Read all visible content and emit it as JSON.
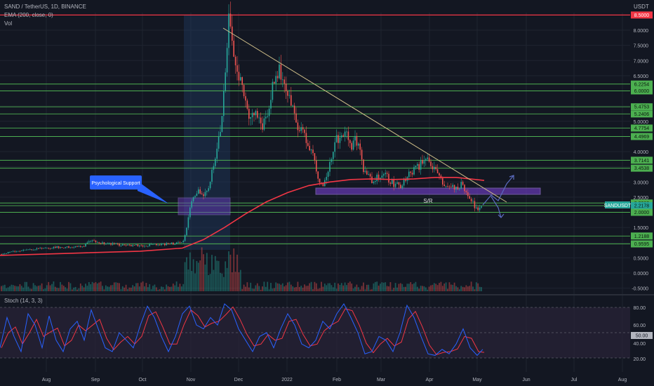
{
  "header": {
    "symbol_line": "SAND / TetherUS, 1D, BINANCE",
    "ema_line": "EMA (200, close, 0)",
    "vol_line": "Vol",
    "currency": "USDT",
    "stoch_line": "Stoch (14, 3, 3)"
  },
  "colors": {
    "background": "#131722",
    "up": "#26a69a",
    "down": "#ef5350",
    "ema": "#f23645",
    "level": "#4caf50",
    "resistance_top": "#f23645",
    "trendline": "#d1c08a",
    "sr_zone": "#673ab7",
    "stoch_k": "#2962ff",
    "stoch_d": "#f23645"
  },
  "chart_data": {
    "type": "candlestick",
    "x_ticks": [
      "Aug",
      "Sep",
      "Oct",
      "Nov",
      "Dec",
      "2022",
      "Feb",
      "Mar",
      "Apr",
      "May",
      "Jun",
      "Jul",
      "Aug"
    ],
    "y_ticks": [
      "8.0000",
      "7.5000",
      "7.0000",
      "6.5000",
      "6.0000",
      "5.5000",
      "5.0000",
      "4.5000",
      "4.0000",
      "3.5000",
      "3.0000",
      "2.5000",
      "2.0000",
      "1.5000",
      "1.0000",
      "0.5000",
      "0.0000",
      "-0.5000"
    ],
    "horizontal_levels": [
      "8.5000",
      "6.2254",
      "6.0000",
      "5.4753",
      "5.2406",
      "4.7754",
      "4.4969",
      "3.7141",
      "3.4538",
      "2.3063",
      "2.2178",
      "2.0000",
      "1.2188",
      "0.9595"
    ],
    "current_price_label": "SANDUSDT",
    "current_price": "2.2178",
    "annotations": {
      "callout": "Psychological Support",
      "sr_label": "S/R"
    },
    "price_path": [
      [
        0,
        0.62
      ],
      [
        20,
        0.7
      ],
      [
        40,
        0.78
      ],
      [
        60,
        0.8
      ],
      [
        80,
        0.85
      ],
      [
        100,
        0.86
      ],
      [
        120,
        0.9
      ],
      [
        130,
        1.1
      ],
      [
        140,
        1.0
      ],
      [
        160,
        0.95
      ],
      [
        180,
        0.92
      ],
      [
        200,
        0.9
      ],
      [
        220,
        0.93
      ],
      [
        240,
        0.95
      ],
      [
        255,
        0.98
      ],
      [
        262,
        1.05
      ],
      [
        268,
        1.8
      ],
      [
        274,
        2.4
      ],
      [
        282,
        2.7
      ],
      [
        290,
        2.5
      ],
      [
        298,
        2.8
      ],
      [
        306,
        3.8
      ],
      [
        314,
        4.6
      ],
      [
        320,
        6.5
      ],
      [
        326,
        8.4
      ],
      [
        332,
        7.2
      ],
      [
        338,
        6.6
      ],
      [
        344,
        6.2
      ],
      [
        350,
        5.6
      ],
      [
        356,
        5.0
      ],
      [
        362,
        5.2
      ],
      [
        368,
        5.3
      ],
      [
        374,
        4.8
      ],
      [
        380,
        5.1
      ],
      [
        386,
        5.8
      ],
      [
        392,
        6.6
      ],
      [
        398,
        6.7
      ],
      [
        404,
        6.2
      ],
      [
        410,
        5.9
      ],
      [
        416,
        5.4
      ],
      [
        424,
        4.9
      ],
      [
        432,
        4.6
      ],
      [
        440,
        4.3
      ],
      [
        448,
        3.7
      ],
      [
        454,
        3.0
      ],
      [
        460,
        2.95
      ],
      [
        466,
        3.2
      ],
      [
        472,
        3.8
      ],
      [
        480,
        4.4
      ],
      [
        488,
        4.6
      ],
      [
        494,
        4.5
      ],
      [
        500,
        4.1
      ],
      [
        506,
        4.4
      ],
      [
        512,
        4.1
      ],
      [
        518,
        3.4
      ],
      [
        524,
        3.2
      ],
      [
        530,
        3.0
      ],
      [
        538,
        3.2
      ],
      [
        546,
        3.3
      ],
      [
        554,
        3.1
      ],
      [
        562,
        2.9
      ],
      [
        570,
        2.85
      ],
      [
        580,
        3.2
      ],
      [
        590,
        3.4
      ],
      [
        600,
        3.6
      ],
      [
        610,
        3.7
      ],
      [
        618,
        3.5
      ],
      [
        626,
        3.1
      ],
      [
        634,
        2.95
      ],
      [
        642,
        2.85
      ],
      [
        650,
        2.8
      ],
      [
        658,
        2.9
      ],
      [
        666,
        2.6
      ],
      [
        672,
        2.4
      ],
      [
        678,
        2.1
      ],
      [
        684,
        2.2
      ],
      [
        688,
        2.22
      ]
    ],
    "ema_path": [
      [
        0,
        0.58
      ],
      [
        100,
        0.65
      ],
      [
        200,
        0.72
      ],
      [
        260,
        0.82
      ],
      [
        290,
        1.1
      ],
      [
        320,
        1.5
      ],
      [
        350,
        1.95
      ],
      [
        380,
        2.35
      ],
      [
        410,
        2.65
      ],
      [
        440,
        2.88
      ],
      [
        470,
        3.0
      ],
      [
        500,
        3.08
      ],
      [
        530,
        3.1
      ],
      [
        560,
        3.08
      ],
      [
        590,
        3.1
      ],
      [
        620,
        3.15
      ],
      [
        650,
        3.15
      ],
      [
        690,
        3.05
      ]
    ],
    "stoch": {
      "levels": [
        "80.00",
        "60.00",
        "50.00",
        "40.00",
        "20.00"
      ],
      "current": "50.00",
      "k": [
        [
          0,
          30
        ],
        [
          10,
          70
        ],
        [
          20,
          45
        ],
        [
          30,
          25
        ],
        [
          40,
          75
        ],
        [
          50,
          60
        ],
        [
          60,
          30
        ],
        [
          70,
          72
        ],
        [
          80,
          40
        ],
        [
          90,
          25
        ],
        [
          100,
          55
        ],
        [
          110,
          65
        ],
        [
          120,
          40
        ],
        [
          130,
          80
        ],
        [
          140,
          55
        ],
        [
          150,
          30
        ],
        [
          160,
          25
        ],
        [
          170,
          50
        ],
        [
          180,
          40
        ],
        [
          190,
          30
        ],
        [
          200,
          60
        ],
        [
          210,
          85
        ],
        [
          220,
          70
        ],
        [
          230,
          45
        ],
        [
          240,
          25
        ],
        [
          250,
          45
        ],
        [
          260,
          75
        ],
        [
          270,
          85
        ],
        [
          280,
          60
        ],
        [
          290,
          55
        ],
        [
          300,
          70
        ],
        [
          310,
          60
        ],
        [
          320,
          88
        ],
        [
          330,
          80
        ],
        [
          340,
          55
        ],
        [
          350,
          40
        ],
        [
          360,
          25
        ],
        [
          370,
          45
        ],
        [
          380,
          50
        ],
        [
          390,
          30
        ],
        [
          400,
          55
        ],
        [
          410,
          75
        ],
        [
          420,
          60
        ],
        [
          430,
          35
        ],
        [
          440,
          30
        ],
        [
          450,
          40
        ],
        [
          460,
          65
        ],
        [
          470,
          55
        ],
        [
          480,
          75
        ],
        [
          490,
          88
        ],
        [
          500,
          70
        ],
        [
          510,
          50
        ],
        [
          520,
          22
        ],
        [
          530,
          25
        ],
        [
          540,
          45
        ],
        [
          550,
          40
        ],
        [
          560,
          25
        ],
        [
          570,
          50
        ],
        [
          580,
          86
        ],
        [
          590,
          70
        ],
        [
          600,
          45
        ],
        [
          610,
          22
        ],
        [
          620,
          20
        ],
        [
          630,
          28
        ],
        [
          640,
          22
        ],
        [
          650,
          35
        ],
        [
          660,
          55
        ],
        [
          670,
          30
        ],
        [
          680,
          20
        ],
        [
          688,
          28
        ]
      ]
    }
  }
}
